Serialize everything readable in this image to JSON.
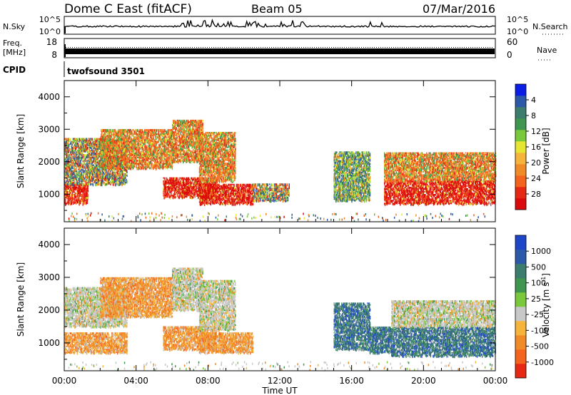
{
  "header": {
    "title": "Dome C East (fitACF)",
    "beam": "Beam 05",
    "date": "07/Mar/2016"
  },
  "nsky_panel": {
    "left_label": "N.Sky",
    "left_ticks": [
      "10^5",
      "10^0"
    ],
    "right_ticks": [
      "10^5",
      "10^0"
    ],
    "right_label": "N.Search"
  },
  "freq_panel": {
    "left_label_line1": "Freq.",
    "left_label_line2": "[MHz]",
    "left_ticks": [
      "18",
      "8"
    ],
    "right_ticks": [
      "60",
      "0"
    ],
    "right_label": "Nave"
  },
  "cpid_panel": {
    "label": "CPID",
    "value": "twofsound 3501"
  },
  "x_axis": {
    "label": "Time UT",
    "ticks": [
      "00:00",
      "04:00",
      "08:00",
      "12:00",
      "16:00",
      "20:00",
      "00:00"
    ]
  },
  "chart_data": [
    {
      "type": "heatmap",
      "panel": "power",
      "xlabel": "Time UT",
      "ylabel": "Slant Range [km]",
      "yticks": [
        "1000",
        "2000",
        "3000",
        "4000"
      ],
      "ylim": [
        150,
        4500
      ],
      "xlim_hours": [
        0,
        24
      ],
      "colorbar": {
        "label": "Power [dB]",
        "ticks": [
          "4",
          "8",
          "12",
          "16",
          "20",
          "24",
          "28"
        ],
        "colors": [
          "#0a1ee6",
          "#2d5aa8",
          "#3d7d6e",
          "#3f9650",
          "#7ac83c",
          "#e6e632",
          "#f5b43c",
          "#f08c28",
          "#f5641e",
          "#e62814",
          "#dc0a0a"
        ]
      },
      "echo_regions": [
        {
          "t": [
            0.0,
            1.3
          ],
          "r": [
            700,
            1300
          ],
          "level": "strong"
        },
        {
          "t": [
            0.0,
            3.5
          ],
          "r": [
            1300,
            2700
          ],
          "level": "mixed"
        },
        {
          "t": [
            2.0,
            6.0
          ],
          "r": [
            1800,
            3000
          ],
          "level": "moderate"
        },
        {
          "t": [
            5.5,
            8.5
          ],
          "r": [
            900,
            1500
          ],
          "level": "strong"
        },
        {
          "t": [
            6.0,
            7.7
          ],
          "r": [
            2000,
            3300
          ],
          "level": "moderate"
        },
        {
          "t": [
            7.5,
            10.5
          ],
          "r": [
            700,
            1300
          ],
          "level": "strong"
        },
        {
          "t": [
            7.5,
            9.5
          ],
          "r": [
            1400,
            2900
          ],
          "level": "moderate"
        },
        {
          "t": [
            10.5,
            12.5
          ],
          "r": [
            800,
            1300
          ],
          "level": "mixed"
        },
        {
          "t": [
            15.0,
            17.0
          ],
          "r": [
            800,
            2300
          ],
          "level": "weak"
        },
        {
          "t": [
            17.8,
            20.5
          ],
          "r": [
            700,
            1400
          ],
          "level": "strong"
        },
        {
          "t": [
            17.8,
            24.0
          ],
          "r": [
            1400,
            2300
          ],
          "level": "moderate"
        },
        {
          "t": [
            20.5,
            24.0
          ],
          "r": [
            700,
            1400
          ],
          "level": "strong"
        }
      ]
    },
    {
      "type": "heatmap",
      "panel": "velocity",
      "xlabel": "Time UT",
      "ylabel": "Slant Range [km]",
      "yticks": [
        "1000",
        "2000",
        "3000",
        "4000"
      ],
      "ylim": [
        150,
        4500
      ],
      "xlim_hours": [
        0,
        24
      ],
      "colorbar": {
        "label_main": "Velocity",
        "label_unit": "[m s",
        "label_exp": "-1",
        "label_close": "]",
        "ticks": [
          "1000",
          "500",
          "100",
          "25",
          "-25",
          "-100",
          "-500",
          "-1000"
        ],
        "colors": [
          "#1e46c8",
          "#2d5aa8",
          "#3d7d6e",
          "#3f9650",
          "#7ac83c",
          "#c8c8c8",
          "#f5b43c",
          "#f08c28",
          "#f5641e",
          "#e62814"
        ]
      },
      "echo_regions": [
        {
          "t": [
            0.0,
            3.5
          ],
          "r": [
            1500,
            2700
          ],
          "v": "near zero"
        },
        {
          "t": [
            0.0,
            3.5
          ],
          "r": [
            700,
            1300
          ],
          "v": "away"
        },
        {
          "t": [
            2.0,
            6.0
          ],
          "r": [
            1800,
            3000
          ],
          "v": "away"
        },
        {
          "t": [
            5.5,
            8.5
          ],
          "r": [
            800,
            1500
          ],
          "v": "away"
        },
        {
          "t": [
            6.0,
            7.7
          ],
          "r": [
            2000,
            3300
          ],
          "v": "near zero"
        },
        {
          "t": [
            7.5,
            10.5
          ],
          "r": [
            700,
            1300
          ],
          "v": "away"
        },
        {
          "t": [
            7.5,
            9.5
          ],
          "r": [
            1400,
            2900
          ],
          "v": "near zero"
        },
        {
          "t": [
            15.0,
            17.0
          ],
          "r": [
            800,
            2200
          ],
          "v": "toward"
        },
        {
          "t": [
            17.0,
            18.2
          ],
          "r": [
            700,
            1500
          ],
          "v": "toward"
        },
        {
          "t": [
            18.2,
            24.0
          ],
          "r": [
            600,
            1500
          ],
          "v": "toward"
        },
        {
          "t": [
            18.2,
            24.0
          ],
          "r": [
            1500,
            2300
          ],
          "v": "near zero"
        }
      ]
    }
  ]
}
